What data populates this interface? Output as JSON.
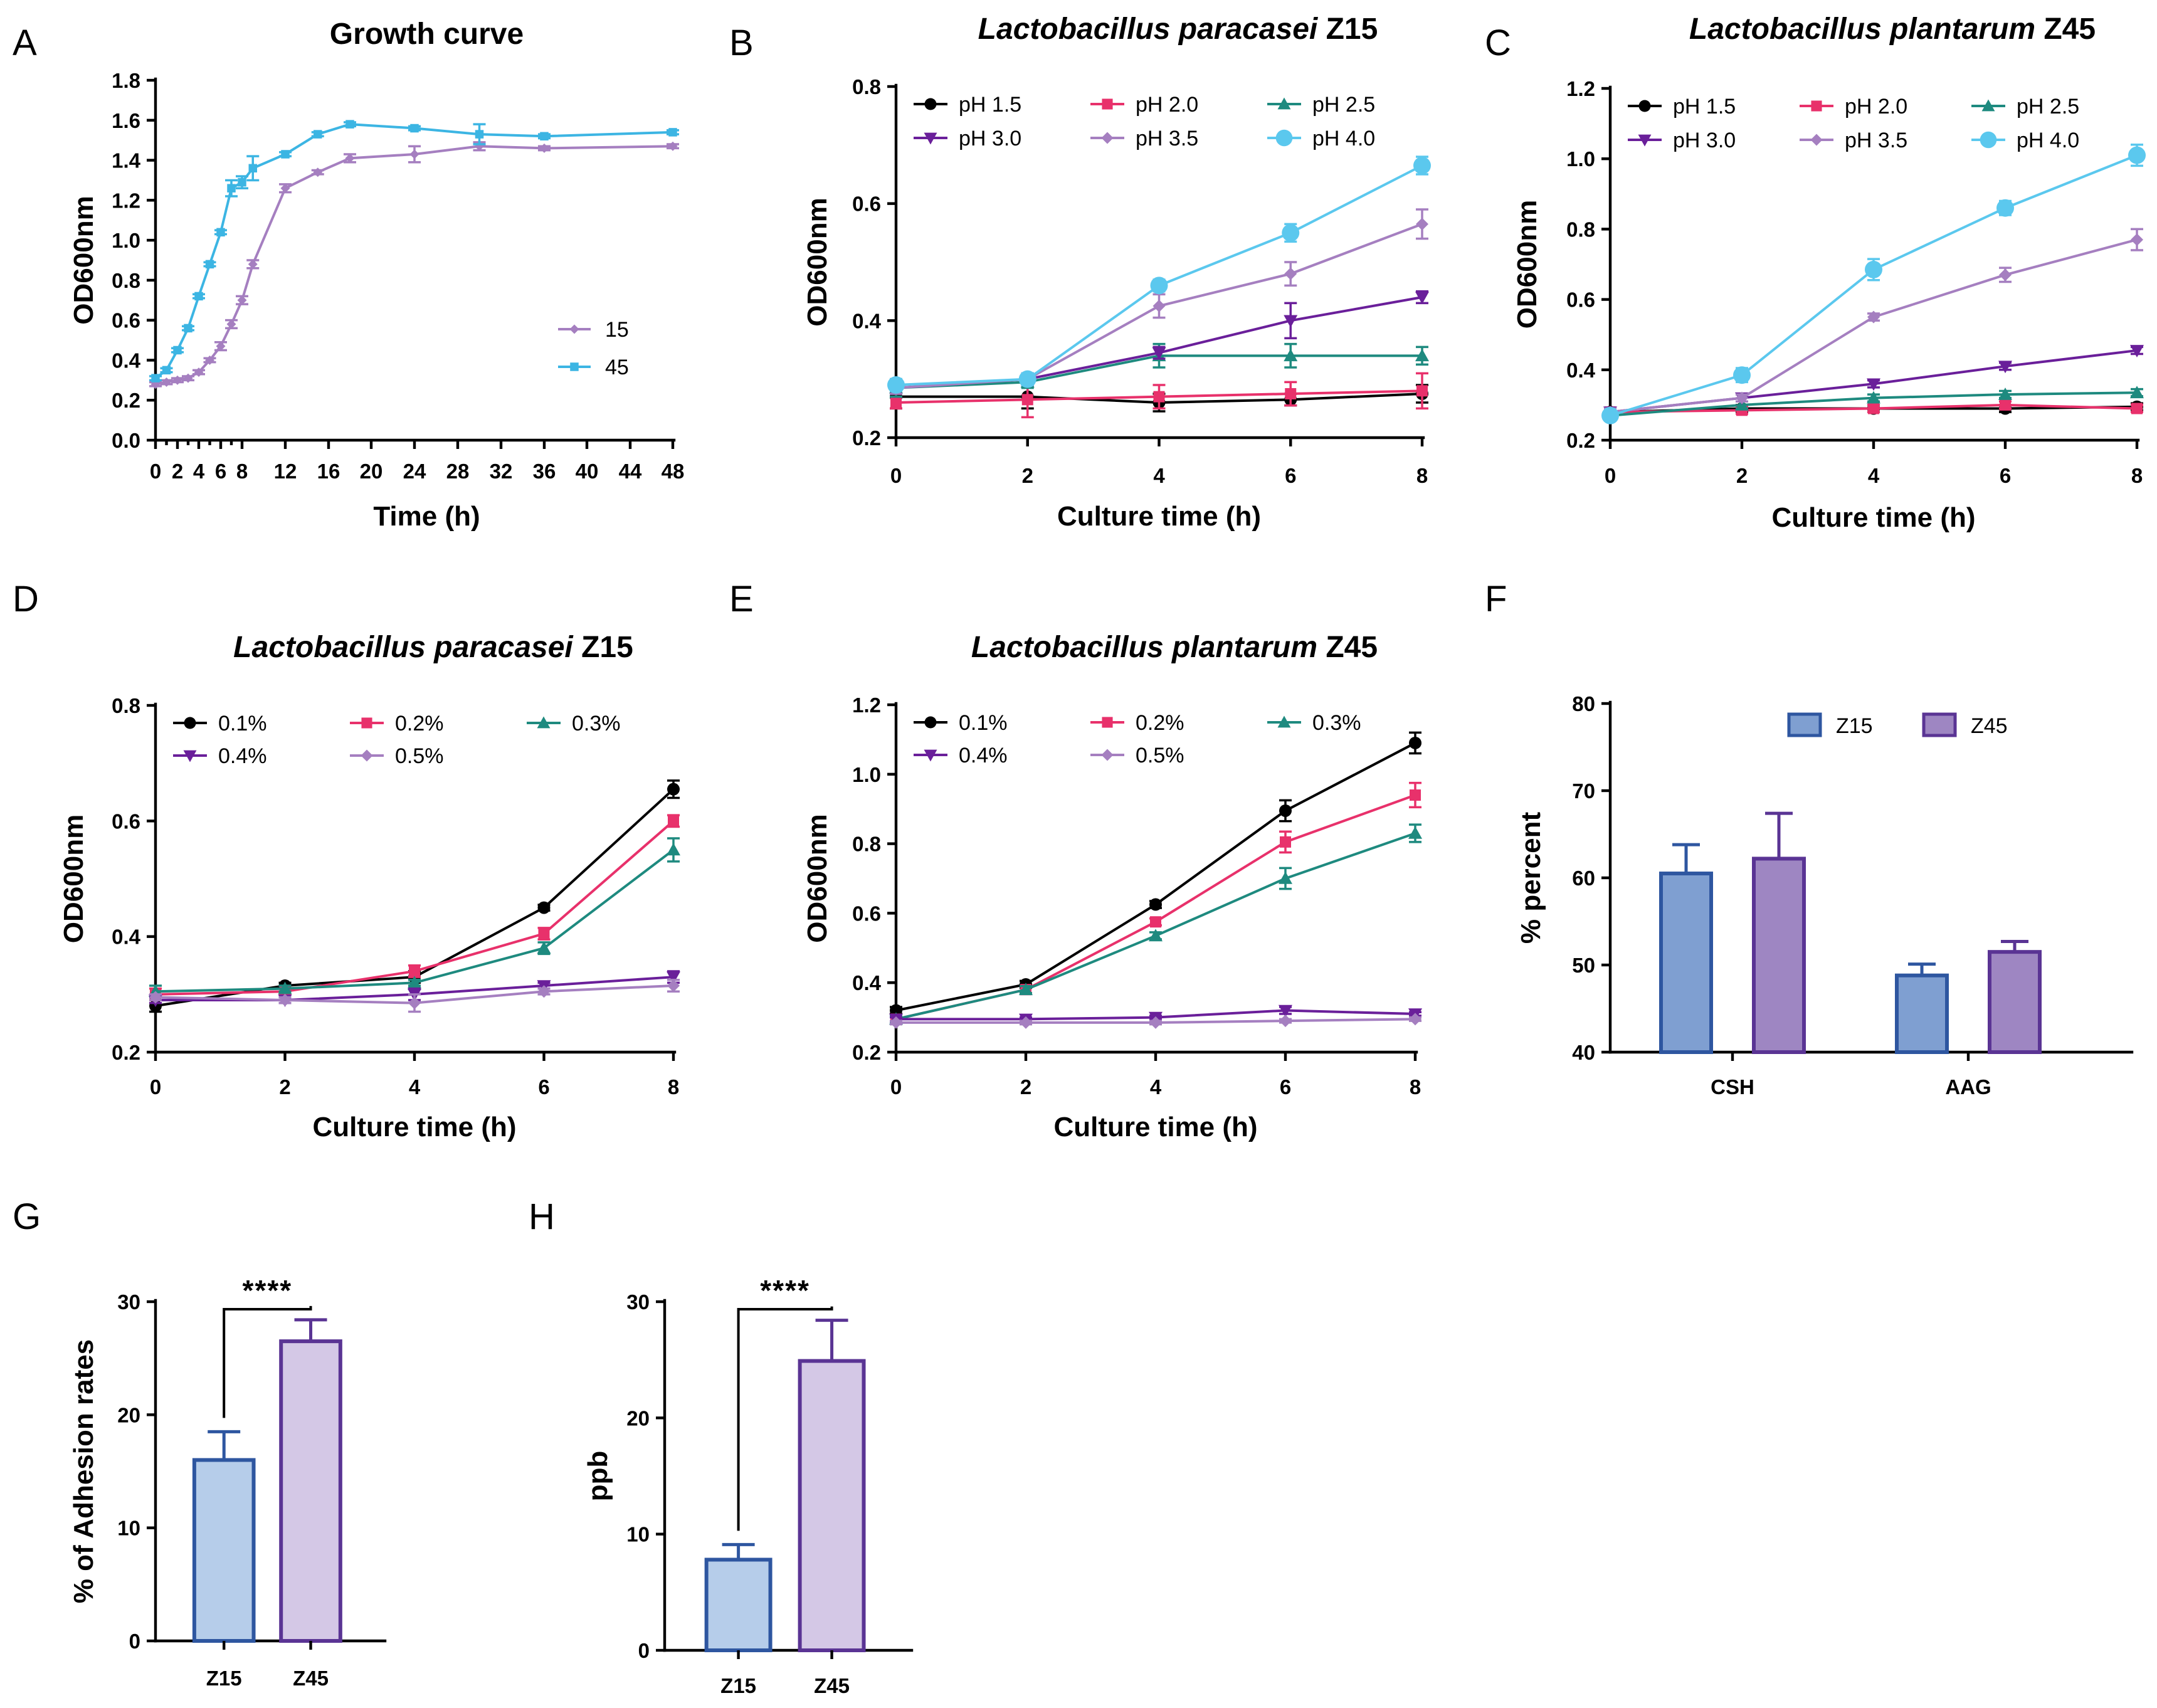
{
  "chart_data": [
    {
      "panel": "A",
      "type": "line",
      "title": "Growth curve",
      "xlabel": "Time (h)",
      "ylabel": "OD600nm",
      "xlim": [
        0,
        48
      ],
      "ylim": [
        0,
        1.8
      ],
      "xticks": [
        "0",
        "2",
        "4",
        "6",
        "8",
        "12",
        "16",
        "20",
        "24",
        "28",
        "32",
        "36",
        "40",
        "44",
        "48"
      ],
      "yticks": [
        "0.0",
        "0.2",
        "0.4",
        "0.6",
        "0.8",
        "1.0",
        "1.2",
        "1.4",
        "1.6",
        "1.8"
      ],
      "legend_position": "bottom-right",
      "series": [
        {
          "name": "15",
          "color": "#a57fc0",
          "marker": "diamond",
          "x": [
            0,
            1,
            2,
            3,
            4,
            5,
            6,
            7,
            8,
            9,
            12,
            15,
            18,
            24,
            30,
            36,
            48
          ],
          "y": [
            0.28,
            0.29,
            0.3,
            0.31,
            0.34,
            0.4,
            0.47,
            0.58,
            0.7,
            0.88,
            1.26,
            1.34,
            1.41,
            1.43,
            1.47,
            1.46,
            1.47
          ],
          "err": [
            0.01,
            0.01,
            0.01,
            0.01,
            0.01,
            0.01,
            0.02,
            0.02,
            0.02,
            0.02,
            0.02,
            0.01,
            0.02,
            0.04,
            0.02,
            0.01,
            0.01
          ]
        },
        {
          "name": "45",
          "color": "#3cb5e3",
          "marker": "square",
          "x": [
            0,
            1,
            2,
            3,
            4,
            5,
            6,
            7,
            8,
            9,
            12,
            15,
            18,
            24,
            30,
            36,
            48
          ],
          "y": [
            0.31,
            0.35,
            0.45,
            0.56,
            0.72,
            0.88,
            1.04,
            1.26,
            1.29,
            1.36,
            1.43,
            1.53,
            1.58,
            1.56,
            1.53,
            1.52,
            1.54
          ],
          "err": [
            0.01,
            0.01,
            0.01,
            0.01,
            0.01,
            0.01,
            0.01,
            0.04,
            0.03,
            0.06,
            0.01,
            0.01,
            0.01,
            0.01,
            0.05,
            0.01,
            0.01
          ]
        }
      ]
    },
    {
      "panel": "B",
      "type": "line",
      "title": "Lactobacillus paracasei Z15",
      "xlabel": "Culture time (h)",
      "ylabel": "OD600nm",
      "xlim": [
        0,
        8
      ],
      "ylim": [
        0.2,
        0.8
      ],
      "xticks": [
        "0",
        "2",
        "4",
        "6",
        "8"
      ],
      "yticks": [
        "0.2",
        "0.4",
        "0.6",
        "0.8"
      ],
      "legend_position": "top-left",
      "series": [
        {
          "name": "pH 1.5",
          "color": "#000000",
          "marker": "circle",
          "x": [
            0,
            2,
            4,
            6,
            8
          ],
          "y": [
            0.27,
            0.27,
            0.26,
            0.265,
            0.275
          ],
          "err": [
            0.02,
            0.02,
            0.015,
            0.01,
            0.015
          ]
        },
        {
          "name": "pH 2.0",
          "color": "#e8316b",
          "marker": "square",
          "x": [
            0,
            2,
            4,
            6,
            8
          ],
          "y": [
            0.26,
            0.265,
            0.27,
            0.275,
            0.28
          ],
          "err": [
            0.01,
            0.03,
            0.02,
            0.02,
            0.03
          ]
        },
        {
          "name": "pH 2.5",
          "color": "#1e8a7f",
          "marker": "triangle-up",
          "x": [
            0,
            2,
            4,
            6,
            8
          ],
          "y": [
            0.285,
            0.295,
            0.34,
            0.34,
            0.34
          ],
          "err": [
            0.015,
            0.01,
            0.02,
            0.02,
            0.015
          ]
        },
        {
          "name": "pH 3.0",
          "color": "#6a1f9a",
          "marker": "triangle-down",
          "x": [
            0,
            2,
            4,
            6,
            8
          ],
          "y": [
            0.285,
            0.3,
            0.345,
            0.4,
            0.44
          ],
          "err": [
            0.01,
            0.01,
            0.01,
            0.03,
            0.01
          ]
        },
        {
          "name": "pH 3.5",
          "color": "#a57fc0",
          "marker": "diamond",
          "x": [
            0,
            2,
            4,
            6,
            8
          ],
          "y": [
            0.285,
            0.3,
            0.425,
            0.48,
            0.565
          ],
          "err": [
            0.01,
            0.01,
            0.02,
            0.02,
            0.025
          ]
        },
        {
          "name": "pH 4.0",
          "color": "#5bc8ee",
          "marker": "circle-large",
          "x": [
            0,
            2,
            4,
            6,
            8
          ],
          "y": [
            0.29,
            0.3,
            0.46,
            0.55,
            0.665
          ],
          "err": [
            0.01,
            0.01,
            0.01,
            0.015,
            0.015
          ]
        }
      ]
    },
    {
      "panel": "C",
      "type": "line",
      "title": "Lactobacillus plantarum Z45",
      "xlabel": "Culture time (h)",
      "ylabel": "OD600nm",
      "xlim": [
        0,
        8
      ],
      "ylim": [
        0.2,
        1.2
      ],
      "xticks": [
        "0",
        "2",
        "4",
        "6",
        "8"
      ],
      "yticks": [
        "0.2",
        "0.4",
        "0.6",
        "0.8",
        "1.0",
        "1.2"
      ],
      "legend_position": "top-left",
      "series": [
        {
          "name": "pH 1.5",
          "color": "#000000",
          "marker": "circle",
          "x": [
            0,
            2,
            4,
            6,
            8
          ],
          "y": [
            0.28,
            0.29,
            0.29,
            0.29,
            0.295
          ],
          "err": [
            0.01,
            0.01,
            0.01,
            0.01,
            0.01
          ]
        },
        {
          "name": "pH 2.0",
          "color": "#e8316b",
          "marker": "square",
          "x": [
            0,
            2,
            4,
            6,
            8
          ],
          "y": [
            0.28,
            0.285,
            0.29,
            0.3,
            0.29
          ],
          "err": [
            0.01,
            0.01,
            0.01,
            0.01,
            0.01
          ]
        },
        {
          "name": "pH 2.5",
          "color": "#1e8a7f",
          "marker": "triangle-up",
          "x": [
            0,
            2,
            4,
            6,
            8
          ],
          "y": [
            0.27,
            0.3,
            0.32,
            0.33,
            0.335
          ],
          "err": [
            0.01,
            0.01,
            0.01,
            0.01,
            0.01
          ]
        },
        {
          "name": "pH 3.0",
          "color": "#6a1f9a",
          "marker": "triangle-down",
          "x": [
            0,
            2,
            4,
            6,
            8
          ],
          "y": [
            0.28,
            0.32,
            0.36,
            0.41,
            0.455
          ],
          "err": [
            0.01,
            0.01,
            0.01,
            0.01,
            0.01
          ]
        },
        {
          "name": "pH 3.5",
          "color": "#a57fc0",
          "marker": "diamond",
          "x": [
            0,
            2,
            4,
            6,
            8
          ],
          "y": [
            0.28,
            0.32,
            0.55,
            0.67,
            0.77
          ],
          "err": [
            0.01,
            0.01,
            0.01,
            0.02,
            0.03
          ]
        },
        {
          "name": "pH 4.0",
          "color": "#5bc8ee",
          "marker": "circle-large",
          "x": [
            0,
            2,
            4,
            6,
            8
          ],
          "y": [
            0.27,
            0.385,
            0.685,
            0.86,
            1.01
          ],
          "err": [
            0.01,
            0.02,
            0.03,
            0.02,
            0.03
          ]
        }
      ]
    },
    {
      "panel": "D",
      "type": "line",
      "title": "Lactobacillus paracasei Z15",
      "xlabel": "Culture time (h)",
      "ylabel": "OD600nm",
      "xlim": [
        0,
        8
      ],
      "ylim": [
        0.2,
        0.8
      ],
      "xticks": [
        "0",
        "2",
        "4",
        "6",
        "8"
      ],
      "yticks": [
        "0.2",
        "0.4",
        "0.6",
        "0.8"
      ],
      "legend_position": "top-left",
      "series": [
        {
          "name": "0.1%",
          "color": "#000000",
          "marker": "circle",
          "x": [
            0,
            2,
            4,
            6,
            8
          ],
          "y": [
            0.28,
            0.315,
            0.33,
            0.45,
            0.655
          ],
          "err": [
            0.01,
            0.005,
            0.01,
            0.005,
            0.015
          ]
        },
        {
          "name": "0.2%",
          "color": "#e8316b",
          "marker": "square",
          "x": [
            0,
            2,
            4,
            6,
            8
          ],
          "y": [
            0.3,
            0.305,
            0.34,
            0.405,
            0.6
          ],
          "err": [
            0.01,
            0.005,
            0.01,
            0.01,
            0.01
          ]
        },
        {
          "name": "0.3%",
          "color": "#1e8a7f",
          "marker": "triangle-up",
          "x": [
            0,
            2,
            4,
            6,
            8
          ],
          "y": [
            0.305,
            0.31,
            0.32,
            0.38,
            0.55
          ],
          "err": [
            0.01,
            0.005,
            0.005,
            0.01,
            0.02
          ]
        },
        {
          "name": "0.4%",
          "color": "#6a1f9a",
          "marker": "triangle-down",
          "x": [
            0,
            2,
            4,
            6,
            8
          ],
          "y": [
            0.29,
            0.29,
            0.3,
            0.315,
            0.33
          ],
          "err": [
            0.005,
            0.005,
            0.01,
            0.005,
            0.01
          ]
        },
        {
          "name": "0.5%",
          "color": "#a57fc0",
          "marker": "diamond",
          "x": [
            0,
            2,
            4,
            6,
            8
          ],
          "y": [
            0.295,
            0.29,
            0.285,
            0.305,
            0.315
          ],
          "err": [
            0.005,
            0.005,
            0.015,
            0.005,
            0.01
          ]
        }
      ]
    },
    {
      "panel": "E",
      "type": "line",
      "title": "Lactobacillus plantarum Z45",
      "xlabel": "Culture time (h)",
      "ylabel": "OD600nm",
      "xlim": [
        0,
        8
      ],
      "ylim": [
        0.2,
        1.2
      ],
      "xticks": [
        "0",
        "2",
        "4",
        "6",
        "8"
      ],
      "yticks": [
        "0.2",
        "0.4",
        "0.6",
        "0.8",
        "1.0",
        "1.2"
      ],
      "legend_position": "top-left",
      "series": [
        {
          "name": "0.1%",
          "color": "#000000",
          "marker": "circle",
          "x": [
            0,
            2,
            4,
            6,
            8
          ],
          "y": [
            0.32,
            0.395,
            0.625,
            0.895,
            1.09
          ],
          "err": [
            0.01,
            0.01,
            0.01,
            0.03,
            0.03
          ]
        },
        {
          "name": "0.2%",
          "color": "#e8316b",
          "marker": "square",
          "x": [
            0,
            2,
            4,
            6,
            8
          ],
          "y": [
            0.295,
            0.38,
            0.575,
            0.805,
            0.94
          ],
          "err": [
            0.01,
            0.01,
            0.01,
            0.03,
            0.035
          ]
        },
        {
          "name": "0.3%",
          "color": "#1e8a7f",
          "marker": "triangle-up",
          "x": [
            0,
            2,
            4,
            6,
            8
          ],
          "y": [
            0.295,
            0.38,
            0.535,
            0.7,
            0.83
          ],
          "err": [
            0.01,
            0.01,
            0.01,
            0.03,
            0.025
          ]
        },
        {
          "name": "0.4%",
          "color": "#6a1f9a",
          "marker": "triangle-down",
          "x": [
            0,
            2,
            4,
            6,
            8
          ],
          "y": [
            0.295,
            0.295,
            0.3,
            0.32,
            0.31
          ],
          "err": [
            0.005,
            0.005,
            0.005,
            0.01,
            0.005
          ]
        },
        {
          "name": "0.5%",
          "color": "#a57fc0",
          "marker": "diamond",
          "x": [
            0,
            2,
            4,
            6,
            8
          ],
          "y": [
            0.285,
            0.285,
            0.285,
            0.29,
            0.295
          ],
          "err": [
            0.005,
            0.005,
            0.005,
            0.005,
            0.005
          ]
        }
      ]
    },
    {
      "panel": "F",
      "type": "bar",
      "title": "",
      "xlabel": "",
      "ylabel": "% percent",
      "ylim": [
        40,
        80
      ],
      "yticks": [
        "40",
        "50",
        "60",
        "70",
        "80"
      ],
      "categories": [
        "CSH",
        "AAG"
      ],
      "legend_position": "top-right",
      "series": [
        {
          "name": "Z15",
          "fill": "#7f9fd1",
          "stroke": "#2e56a0",
          "values": [
            60.5,
            48.8
          ],
          "err": [
            3.3,
            1.3
          ]
        },
        {
          "name": "Z45",
          "fill": "#9e86c2",
          "stroke": "#5a3494",
          "values": [
            62.2,
            51.5
          ],
          "err": [
            5.2,
            1.2
          ]
        }
      ]
    },
    {
      "panel": "G",
      "type": "bar",
      "title": "",
      "xlabel": "",
      "ylabel": "% of Adhesion rates",
      "ylim": [
        0,
        30
      ],
      "yticks": [
        "0",
        "10",
        "20",
        "30"
      ],
      "categories": [
        "Z15",
        "Z45"
      ],
      "values": [
        16.0,
        26.5
      ],
      "err": [
        2.5,
        1.9
      ],
      "fills": [
        "#b6cdea",
        "#d4c8e6"
      ],
      "strokes": [
        "#2e56a0",
        "#5a3494"
      ],
      "significance": "****"
    },
    {
      "panel": "H",
      "type": "bar",
      "title": "",
      "xlabel": "",
      "ylabel": "ppb",
      "ylim": [
        0,
        30
      ],
      "yticks": [
        "0",
        "10",
        "20",
        "30"
      ],
      "categories": [
        "Z15",
        "Z45"
      ],
      "values": [
        7.8,
        24.9
      ],
      "err": [
        1.3,
        3.5
      ],
      "fills": [
        "#b6cdea",
        "#d4c8e6"
      ],
      "strokes": [
        "#2e56a0",
        "#5a3494"
      ],
      "significance": "****"
    }
  ]
}
